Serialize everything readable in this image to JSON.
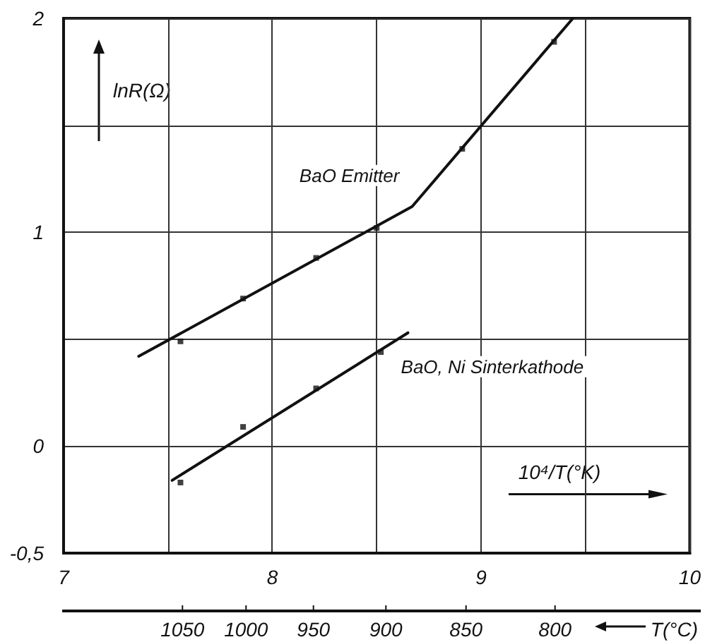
{
  "chart_data": {
    "type": "scatter",
    "xlabel": "10⁴/T(°K)",
    "ylabel": "lnR(Ω)",
    "xlim": [
      7,
      10
    ],
    "xticks": [
      7,
      {
        "value": 7.5,
        "label": null
      },
      8,
      {
        "value": 8.5,
        "label": null
      },
      9,
      {
        "value": 9.5,
        "label": null
      },
      10
    ],
    "ylim": [
      -0.5,
      2
    ],
    "yticks": [
      {
        "value": -0.5,
        "label": "-0,5"
      },
      0,
      {
        "value": 0.5,
        "label": null
      },
      1,
      {
        "value": 1.5,
        "label": null
      },
      2
    ],
    "annotations": [
      "1050",
      "1000",
      "950",
      "900",
      "850",
      "800",
      "T(°C)"
    ],
    "grid": true,
    "legend": false,
    "marker": "square",
    "series": [
      {
        "color": "#111111",
        "x": [
          7.56,
          7.86,
          8.21,
          8.5,
          8.91,
          9.35
        ],
        "values": [
          0.49,
          0.69,
          0.88,
          1.02,
          1.39,
          1.89
        ]
      },
      {
        "type": "line",
        "name": "BaO Emitter",
        "color": "#111111",
        "marker": "none",
        "line_style": "solid",
        "x": [
          7.36,
          8.67,
          9.44
        ],
        "values": [
          0.42,
          1.12,
          2.0
        ]
      },
      {
        "color": "#111111",
        "x": [
          7.56,
          7.86,
          8.21,
          8.52
        ],
        "values": [
          -0.17,
          0.09,
          0.27,
          0.44
        ]
      },
      {
        "type": "line",
        "name": "BaO, Ni Sinterkathode",
        "color": "#111111",
        "marker": "none",
        "line_style": "solid",
        "x": [
          7.52,
          8.65
        ],
        "values": [
          -0.16,
          0.53
        ]
      }
    ]
  }
}
